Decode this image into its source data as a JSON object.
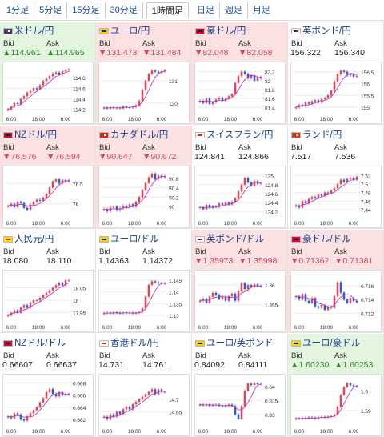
{
  "tabs": [
    {
      "label": "1分足",
      "active": false
    },
    {
      "label": "5分足",
      "active": false
    },
    {
      "label": "15分足",
      "active": false
    },
    {
      "label": "30分足",
      "active": false
    },
    {
      "label": "1時間足",
      "active": true
    },
    {
      "label": "日足",
      "active": false
    },
    {
      "label": "週足",
      "active": false
    },
    {
      "label": "月足",
      "active": false
    }
  ],
  "labels": {
    "bid": "Bid",
    "ask": "Ask"
  },
  "colors": {
    "up_bg": "#e4f5df",
    "down_bg": "#fbe1e1",
    "up_text": "#2e8b2e",
    "down_text": "#d6485a",
    "candle_up": "#d6485a",
    "candle_down": "#2a5bd4",
    "ma": "#c23ac2",
    "ma2": "#3ab0c2"
  },
  "pairs": [
    {
      "name": "米ドル/円",
      "flag": "us-flag-icon",
      "dir": "up",
      "bid": "▲114.961",
      "ask": "▲114.965",
      "yticks": [
        "114.8",
        "114.6",
        "114.4",
        "114.2"
      ],
      "ymin": 114.15,
      "ymax": 115.0,
      "xticks": [
        "6:00",
        "18:00",
        "6:00"
      ],
      "series": [
        114.2,
        114.25,
        114.32,
        114.3,
        114.4,
        114.45,
        114.52,
        114.55,
        114.6,
        114.58,
        114.66,
        114.74,
        114.78,
        114.83,
        114.88,
        114.9,
        114.86,
        114.92,
        114.94,
        114.96
      ]
    },
    {
      "name": "ユーロ/円",
      "flag": "eu-flag-icon",
      "dir": "down",
      "bid": "▼131.473",
      "ask": "▼131.484",
      "yticks": [
        "131",
        "130"
      ],
      "ymin": 129.6,
      "ymax": 131.6,
      "xticks": [
        "6:00",
        "18:00",
        "6:00"
      ],
      "series": [
        129.8,
        129.75,
        129.82,
        129.78,
        129.8,
        129.76,
        129.85,
        129.82,
        129.8,
        129.84,
        129.9,
        130.1,
        130.6,
        131.0,
        131.3,
        131.45,
        131.4,
        131.35,
        131.42,
        131.47
      ]
    },
    {
      "name": "豪ドル/円",
      "flag": "au-flag-icon",
      "dir": "down",
      "bid": "▼82.048",
      "ask": "▼82.058",
      "yticks": [
        "82.2",
        "82",
        "81.8",
        "81.6",
        "81.4"
      ],
      "ymin": 81.3,
      "ymax": 82.3,
      "xticks": [
        "6:00",
        "18:00",
        "6:00"
      ],
      "series": [
        81.55,
        81.5,
        81.6,
        81.48,
        81.52,
        81.58,
        81.62,
        81.55,
        81.6,
        81.65,
        81.7,
        81.95,
        82.1,
        82.2,
        82.15,
        82.05,
        82.12,
        82.0,
        82.08,
        82.05
      ]
    },
    {
      "name": "英ポンド/円",
      "flag": "gb-flag-icon",
      "dir": "flat",
      "bid": "156.322",
      "ask": "156.340",
      "yticks": [
        "156.5",
        "156",
        "155.5",
        "155"
      ],
      "ymin": 154.8,
      "ymax": 156.7,
      "xticks": [
        "6:00",
        "18:00",
        "6:00"
      ],
      "series": [
        155.0,
        155.1,
        155.05,
        155.2,
        155.15,
        155.25,
        155.3,
        155.2,
        155.35,
        155.4,
        155.5,
        155.7,
        156.1,
        156.4,
        156.55,
        156.5,
        156.35,
        156.4,
        156.3,
        156.32
      ]
    },
    {
      "name": "NZドル/円",
      "flag": "nz-flag-icon",
      "dir": "down",
      "bid": "▼76.576",
      "ask": "▼76.594",
      "yticks": [
        "76.5",
        "76"
      ],
      "ymin": 75.7,
      "ymax": 76.8,
      "xticks": [
        "6:00",
        "18:00",
        "6:00"
      ],
      "series": [
        75.95,
        76.0,
        75.92,
        76.05,
        76.02,
        75.9,
        75.85,
        75.98,
        76.05,
        76.1,
        76.08,
        76.15,
        76.25,
        76.4,
        76.55,
        76.6,
        76.5,
        76.58,
        76.55,
        76.58
      ]
    },
    {
      "name": "カナダドル/円",
      "flag": "ca-flag-icon",
      "dir": "down",
      "bid": "▼90.647",
      "ask": "▼90.672",
      "yticks": [
        "90.6",
        "90.4",
        "90.2",
        "90"
      ],
      "ymin": 89.8,
      "ymax": 90.75,
      "xticks": [
        "6:00",
        "18:00",
        "6:00"
      ],
      "series": [
        89.95,
        89.9,
        89.98,
        90.0,
        89.92,
        89.96,
        90.02,
        89.98,
        90.05,
        90.0,
        90.1,
        90.2,
        90.35,
        90.5,
        90.62,
        90.7,
        90.58,
        90.66,
        90.62,
        90.65
      ]
    },
    {
      "name": "スイスフラン/円",
      "flag": "ch-flag-icon",
      "dir": "flat",
      "bid": "124.841",
      "ask": "124.866",
      "yticks": [
        "125",
        "124.8",
        "124.6",
        "124.4",
        "124.2"
      ],
      "ymin": 124.1,
      "ymax": 125.1,
      "xticks": [
        "6:00",
        "18:00",
        "6:00"
      ],
      "series": [
        124.3,
        124.25,
        124.35,
        124.28,
        124.32,
        124.3,
        124.38,
        124.35,
        124.4,
        124.36,
        124.42,
        124.5,
        124.65,
        124.8,
        124.95,
        124.85,
        124.78,
        124.88,
        124.82,
        124.84
      ]
    },
    {
      "name": "ランド/円",
      "flag": "za-flag-icon",
      "dir": "flat",
      "bid": "7.517",
      "ask": "7.536",
      "yticks": [
        "7.52",
        "7.5",
        "7.48",
        "7.46",
        "7.44"
      ],
      "ymin": 7.425,
      "ymax": 7.53,
      "xticks": [
        "6:00",
        "18:00",
        "6:00"
      ],
      "series": [
        7.45,
        7.445,
        7.46,
        7.455,
        7.465,
        7.47,
        7.468,
        7.475,
        7.472,
        7.48,
        7.478,
        7.485,
        7.49,
        7.5,
        7.51,
        7.505,
        7.512,
        7.515,
        7.51,
        7.517
      ]
    },
    {
      "name": "人民元/円",
      "flag": "cn-flag-icon",
      "dir": "flat",
      "bid": "18.080",
      "ask": "18.110",
      "yticks": [
        "18.05",
        "18",
        "17.95"
      ],
      "ymin": 17.92,
      "ymax": 18.1,
      "xticks": [
        "6:00",
        "18:00",
        "6:00"
      ],
      "series": [
        17.94,
        17.95,
        17.96,
        17.95,
        17.97,
        17.98,
        17.97,
        17.99,
        18.0,
        18.0,
        18.01,
        18.02,
        18.03,
        18.04,
        18.05,
        18.06,
        18.07,
        18.06,
        18.08,
        18.08
      ]
    },
    {
      "name": "ユーロ/ドル",
      "flag": "eu-flag-icon",
      "dir": "flat",
      "bid": "1.14363",
      "ask": "1.14372",
      "yticks": [
        "1.145",
        "1.14",
        "1.135",
        "1.13"
      ],
      "ymin": 1.128,
      "ymax": 1.147,
      "xticks": [
        "6:00",
        "18:00",
        "6:00"
      ],
      "series": [
        1.131,
        1.1312,
        1.1308,
        1.1314,
        1.1311,
        1.1309,
        1.1313,
        1.131,
        1.1312,
        1.1308,
        1.1311,
        1.1315,
        1.133,
        1.138,
        1.143,
        1.1445,
        1.144,
        1.1438,
        1.1436,
        1.1436
      ]
    },
    {
      "name": "英ポンド/ドル",
      "flag": "gb-flag-icon",
      "dir": "down",
      "bid": "▼1.35973",
      "ask": "▼1.35998",
      "yticks": [
        "1.36",
        "1.355"
      ],
      "ymin": 1.351,
      "ymax": 1.3625,
      "xticks": [
        "6:00",
        "18:00",
        "6:00"
      ],
      "series": [
        1.356,
        1.3565,
        1.3555,
        1.357,
        1.358,
        1.3575,
        1.3565,
        1.357,
        1.356,
        1.3572,
        1.3578,
        1.356,
        1.3585,
        1.3605,
        1.359,
        1.36,
        1.3595,
        1.3602,
        1.3598,
        1.3597
      ]
    },
    {
      "name": "豪ドル/ドル",
      "flag": "au-flag-icon",
      "dir": "down",
      "bid": "▼0.71362",
      "ask": "▼0.71381",
      "yticks": [
        "0.716",
        "0.714",
        "0.712"
      ],
      "ymin": 0.711,
      "ymax": 0.7175,
      "xticks": [
        "6:00",
        "18:00",
        "6:00"
      ],
      "series": [
        0.7145,
        0.714,
        0.7148,
        0.7138,
        0.7135,
        0.7142,
        0.713,
        0.7128,
        0.7132,
        0.7125,
        0.713,
        0.7128,
        0.7145,
        0.7165,
        0.715,
        0.714,
        0.7135,
        0.7142,
        0.7138,
        0.7136
      ]
    },
    {
      "name": "NZドル/ドル",
      "flag": "nz-flag-icon",
      "dir": "flat",
      "bid": "0.66607",
      "ask": "0.66637",
      "yticks": [
        "0.668",
        "0.666",
        "0.664",
        "0.662"
      ],
      "ymin": 0.6612,
      "ymax": 0.6686,
      "xticks": [
        "6:00",
        "18:00",
        "6:00"
      ],
      "series": [
        0.6625,
        0.6622,
        0.663,
        0.6628,
        0.662,
        0.6618,
        0.6625,
        0.663,
        0.6635,
        0.664,
        0.6648,
        0.6655,
        0.6665,
        0.667,
        0.6662,
        0.6658,
        0.6665,
        0.666,
        0.6662,
        0.6661
      ]
    },
    {
      "name": "香港ドル/円",
      "flag": "hk-flag-icon",
      "dir": "flat",
      "bid": "14.731",
      "ask": "14.761",
      "yticks": [
        "14.7",
        "14.65"
      ],
      "ymin": 14.6,
      "ymax": 14.78,
      "xticks": [
        "6:00",
        "18:00",
        "6:00"
      ],
      "series": [
        14.63,
        14.62,
        14.64,
        14.63,
        14.65,
        14.64,
        14.66,
        14.67,
        14.66,
        14.68,
        14.69,
        14.7,
        14.71,
        14.72,
        14.73,
        14.74,
        14.72,
        14.74,
        14.73,
        14.73
      ]
    },
    {
      "name": "ユーロ/英ポンド",
      "flag": "eu-flag-icon",
      "dir": "flat",
      "bid": "0.84092",
      "ask": "0.84111",
      "yticks": [
        "0.84",
        "0.835",
        "0.83"
      ],
      "ymin": 0.8265,
      "ymax": 0.8425,
      "xticks": [
        "6:00",
        "18:00",
        "6:00"
      ],
      "series": [
        0.8335,
        0.8332,
        0.8336,
        0.833,
        0.8333,
        0.8335,
        0.833,
        0.8328,
        0.8332,
        0.8335,
        0.833,
        0.83,
        0.8285,
        0.833,
        0.8385,
        0.841,
        0.8405,
        0.8412,
        0.8408,
        0.8409
      ]
    },
    {
      "name": "ユーロ/豪ドル",
      "flag": "eu-flag-icon",
      "dir": "up",
      "bid": "▲1.60230",
      "ask": "▲1.60253",
      "yticks": [
        "1.6",
        "1.59"
      ],
      "ymin": 1.583,
      "ymax": 1.606,
      "xticks": [
        "6:00",
        "18:00",
        "6:00"
      ],
      "series": [
        1.586,
        1.5858,
        1.5862,
        1.586,
        1.5865,
        1.5863,
        1.586,
        1.5866,
        1.5868,
        1.5865,
        1.587,
        1.5872,
        1.588,
        1.592,
        1.598,
        1.602,
        1.604,
        1.603,
        1.6025,
        1.6023
      ]
    }
  ]
}
